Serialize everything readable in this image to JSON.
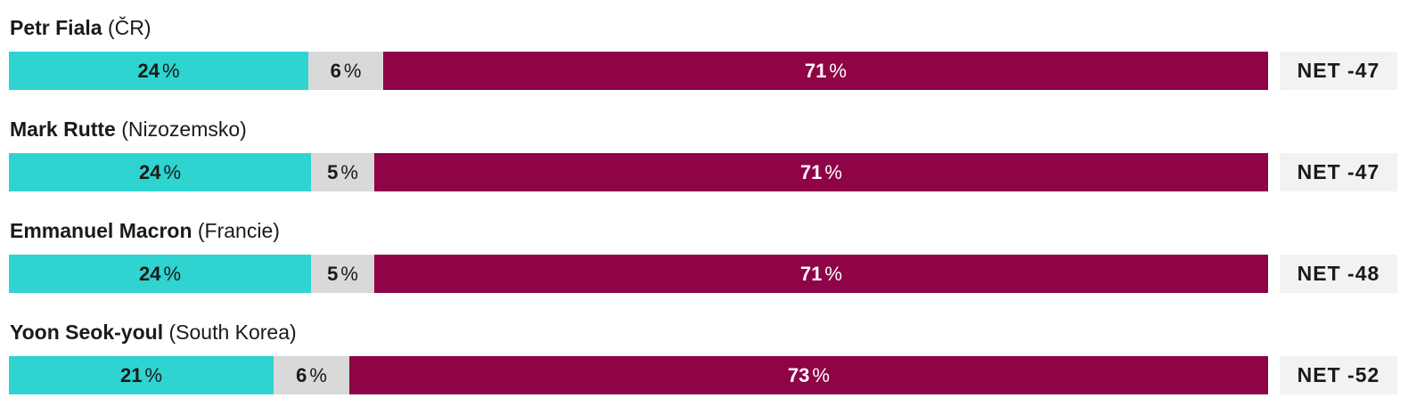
{
  "colors": {
    "approve": "#2fd3d0",
    "neutral": "#d9d9d9",
    "disapprove": "#8e0447",
    "net_bg": "#f2f2f2"
  },
  "chart_data": {
    "type": "bar",
    "orientation": "horizontal-stacked-100",
    "categories": [
      "Petr Fiala (ČR)",
      "Mark Rutte (Nizozemsko)",
      "Emmanuel Macron (Francie)",
      "Yoon Seok-youl (South Korea)"
    ],
    "rows": [
      {
        "name": "Petr Fiala",
        "country": "(ČR)",
        "approve": 24,
        "neutral": 6,
        "disapprove": 71,
        "net": "NET -47"
      },
      {
        "name": "Mark Rutte",
        "country": "(Nizozemsko)",
        "approve": 24,
        "neutral": 5,
        "disapprove": 71,
        "net": "NET -47"
      },
      {
        "name": "Emmanuel Macron",
        "country": "(Francie)",
        "approve": 24,
        "neutral": 5,
        "disapprove": 71,
        "net": "NET -48"
      },
      {
        "name": "Yoon Seok-youl",
        "country": "(South Korea)",
        "approve": 21,
        "neutral": 6,
        "disapprove": 73,
        "net": "NET -52"
      }
    ],
    "series": [
      {
        "values": [
          24,
          24,
          24,
          21
        ]
      },
      {
        "values": [
          6,
          5,
          5,
          6
        ]
      },
      {
        "values": [
          71,
          71,
          71,
          73
        ]
      }
    ],
    "value_suffix": "%",
    "title": "",
    "xlabel": "",
    "ylabel": "",
    "grid": false,
    "legend": "none"
  }
}
